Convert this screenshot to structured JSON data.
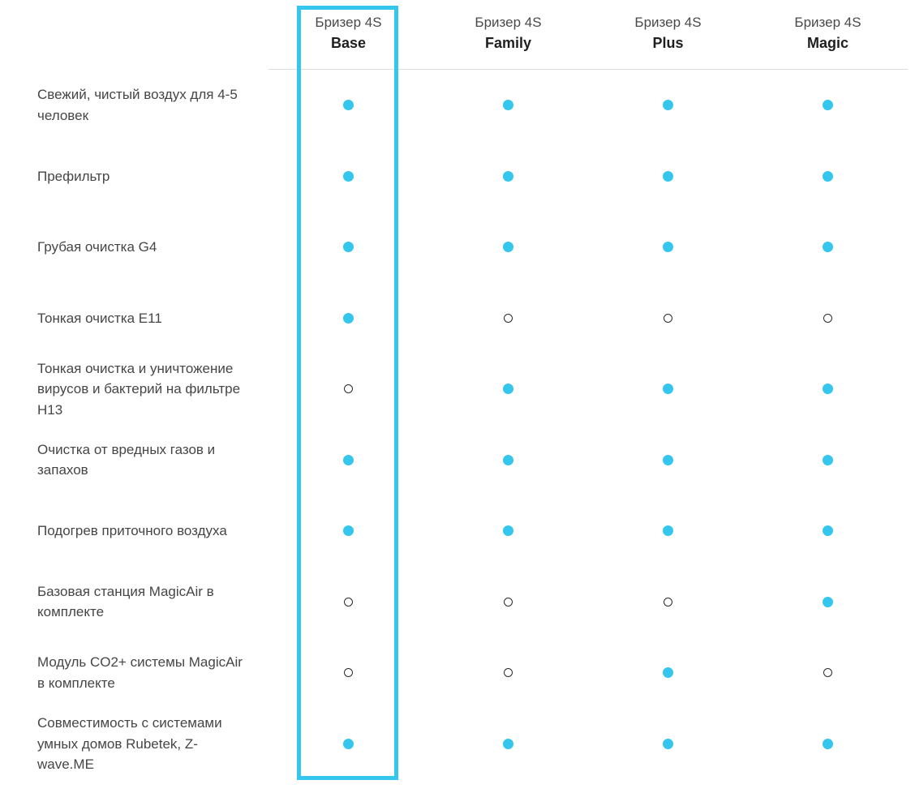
{
  "theme": {
    "accent": "#35C6EE",
    "divider": "#DCDCDC",
    "label_text": "#464646",
    "brand_text": "#4A4A4A",
    "model_text": "#1F1F1F",
    "hollow_dot_outline": "#2B2B2B"
  },
  "columns": [
    {
      "brand": "Бризер 4S",
      "model": "Base",
      "selected": true
    },
    {
      "brand": "Бризер 4S",
      "model": "Family",
      "selected": false
    },
    {
      "brand": "Бризер 4S",
      "model": "Plus",
      "selected": false
    },
    {
      "brand": "Бризер 4S",
      "model": "Magic",
      "selected": false
    }
  ],
  "dot_legend": {
    "filled": "feature included",
    "hollow": "feature not included"
  },
  "features": [
    {
      "label": "Свежий, чистый воздух для 4-5 человек",
      "included": [
        true,
        true,
        true,
        true
      ]
    },
    {
      "label": "Префильтр",
      "included": [
        true,
        true,
        true,
        true
      ]
    },
    {
      "label": "Грубая очистка G4",
      "included": [
        true,
        true,
        true,
        true
      ]
    },
    {
      "label": "Тонкая очистка E11",
      "included": [
        true,
        false,
        false,
        false
      ]
    },
    {
      "label": "Тонкая очистка и уничтожение вирусов и бактерий на фильтре H13",
      "included": [
        false,
        true,
        true,
        true
      ]
    },
    {
      "label": "Очистка от вредных газов и запахов",
      "included": [
        true,
        true,
        true,
        true
      ]
    },
    {
      "label": "Подогрев приточного воздуха",
      "included": [
        true,
        true,
        true,
        true
      ]
    },
    {
      "label": "Базовая станция MagicAir в комплекте",
      "included": [
        false,
        false,
        false,
        true
      ]
    },
    {
      "label": "Модуль CO2+ системы MagicAir в комплекте",
      "included": [
        false,
        false,
        true,
        false
      ]
    },
    {
      "label": "Совместимость с системами умных домов Rubetek, Z-wave.ME",
      "included": [
        true,
        true,
        true,
        true
      ]
    }
  ]
}
